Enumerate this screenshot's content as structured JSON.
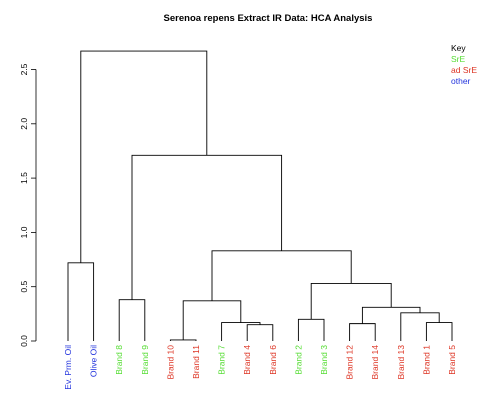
{
  "chart_data": {
    "type": "dendrogram",
    "title": "Serenoa repens Extract IR Data: HCA Analysis",
    "xlabel": "",
    "ylabel": "",
    "ylim": [
      0,
      2.75
    ],
    "yticks": [
      0.0,
      0.5,
      1.0,
      1.5,
      2.0,
      2.5
    ],
    "ytick_labels": [
      "0.0",
      "0.5",
      "1.0",
      "1.5",
      "2.0",
      "2.5"
    ],
    "grid": false,
    "legend_position": "top-right",
    "legend": {
      "title": "Key",
      "entries": [
        {
          "label": "SrE",
          "group": "SrE",
          "color": "#55dd33"
        },
        {
          "label": "ad SrE",
          "group": "ad SrE",
          "color": "#dd3322"
        },
        {
          "label": "other",
          "group": "other",
          "color": "#2233dd"
        }
      ]
    },
    "leaves": [
      {
        "label": "Ev. Prm. Oil",
        "group": "other"
      },
      {
        "label": "Olive Oil",
        "group": "other"
      },
      {
        "label": "Brand 8",
        "group": "SrE"
      },
      {
        "label": "Brand 9",
        "group": "SrE"
      },
      {
        "label": "Brand 10",
        "group": "ad SrE"
      },
      {
        "label": "Brand 11",
        "group": "ad SrE"
      },
      {
        "label": "Brand 7",
        "group": "SrE"
      },
      {
        "label": "Brand 4",
        "group": "ad SrE"
      },
      {
        "label": "Brand 6",
        "group": "ad SrE"
      },
      {
        "label": "Brand 2",
        "group": "SrE"
      },
      {
        "label": "Brand 3",
        "group": "SrE"
      },
      {
        "label": "Brand 12",
        "group": "ad SrE"
      },
      {
        "label": "Brand 14",
        "group": "ad SrE"
      },
      {
        "label": "Brand 13",
        "group": "ad SrE"
      },
      {
        "label": "Brand 1",
        "group": "ad SrE"
      },
      {
        "label": "Brand 5",
        "group": "ad SrE"
      }
    ],
    "merges": [
      {
        "id": "m1",
        "left": "Brand 10",
        "right": "Brand 11",
        "height": 0.01
      },
      {
        "id": "m2",
        "left": "Brand 4",
        "right": "Brand 6",
        "height": 0.15
      },
      {
        "id": "m3",
        "left": "Brand 12",
        "right": "Brand 14",
        "height": 0.16
      },
      {
        "id": "m4",
        "left": "Brand 1",
        "right": "Brand 5",
        "height": 0.17
      },
      {
        "id": "m5",
        "left": "Brand 7",
        "right": "m2",
        "height": 0.17
      },
      {
        "id": "m6",
        "left": "Brand 2",
        "right": "Brand 3",
        "height": 0.2
      },
      {
        "id": "m7",
        "left": "Brand 13",
        "right": "m4",
        "height": 0.26
      },
      {
        "id": "m8",
        "left": "m3",
        "right": "m7",
        "height": 0.31
      },
      {
        "id": "m9",
        "left": "m1",
        "right": "m5",
        "height": 0.37
      },
      {
        "id": "m10",
        "left": "Brand 8",
        "right": "Brand 9",
        "height": 0.38
      },
      {
        "id": "m11",
        "left": "m6",
        "right": "m8",
        "height": 0.53
      },
      {
        "id": "m12",
        "left": "Ev. Prm. Oil",
        "right": "Olive Oil",
        "height": 0.72
      },
      {
        "id": "m13",
        "left": "m9",
        "right": "m11",
        "height": 0.83
      },
      {
        "id": "m14",
        "left": "m10",
        "right": "m13",
        "height": 1.71
      },
      {
        "id": "m15",
        "left": "m12",
        "right": "m14",
        "height": 2.67
      }
    ]
  }
}
